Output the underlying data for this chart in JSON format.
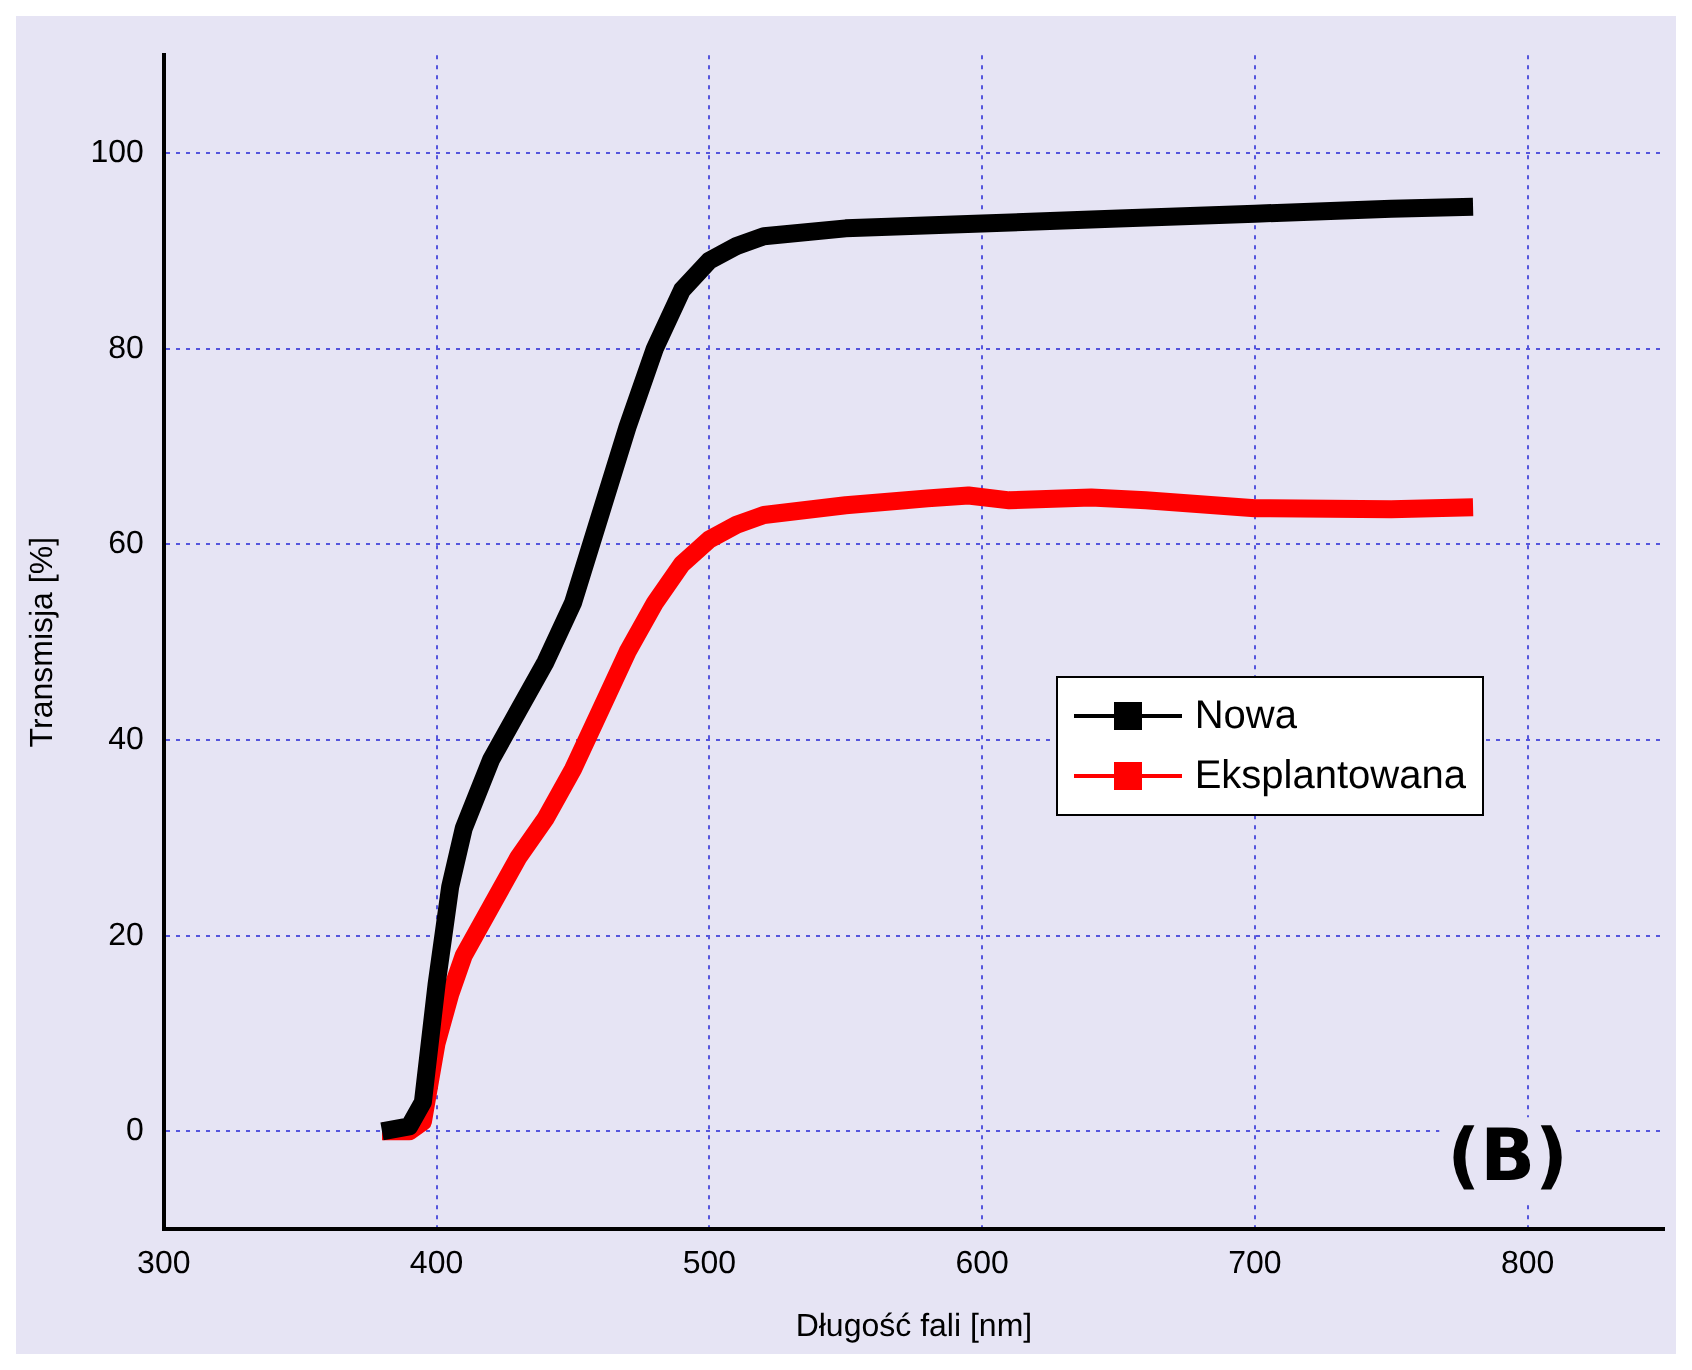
{
  "chart_data": {
    "type": "line",
    "xlabel": "Długość fali [nm]",
    "ylabel": "Transmisja [%]",
    "xlim": [
      300,
      850
    ],
    "ylim": [
      -10,
      110
    ],
    "xticks": [
      300,
      400,
      500,
      600,
      700,
      800
    ],
    "yticks": [
      0,
      20,
      40,
      60,
      80,
      100
    ],
    "grid": true,
    "legend": "right",
    "line_style": "solid",
    "annotations": [
      "(B)"
    ],
    "series": [
      {
        "name": "Nowa",
        "color": "#000000",
        "x": [
          380,
          390,
          395,
          400,
          405,
          410,
          420,
          430,
          440,
          450,
          460,
          470,
          480,
          490,
          500,
          510,
          520,
          550,
          600,
          650,
          700,
          750,
          780
        ],
        "values": [
          0,
          0.5,
          3,
          15,
          25,
          31,
          38,
          43,
          48,
          54,
          63,
          72,
          80,
          86,
          89,
          90.5,
          91.5,
          92.3,
          92.8,
          93.3,
          93.8,
          94.3,
          94.5
        ]
      },
      {
        "name": "Eksplantowana",
        "color": "#ff0000",
        "x": [
          380,
          390,
          395,
          400,
          405,
          410,
          420,
          430,
          440,
          450,
          460,
          470,
          480,
          490,
          500,
          510,
          520,
          550,
          580,
          595,
          610,
          640,
          660,
          700,
          750,
          780
        ],
        "values": [
          0,
          0,
          1,
          9,
          14,
          18,
          23,
          28,
          32,
          37,
          43,
          49,
          54,
          58,
          60.5,
          62,
          63,
          64,
          64.7,
          65,
          64.5,
          64.8,
          64.5,
          63.7,
          63.6,
          63.8
        ]
      }
    ]
  }
}
